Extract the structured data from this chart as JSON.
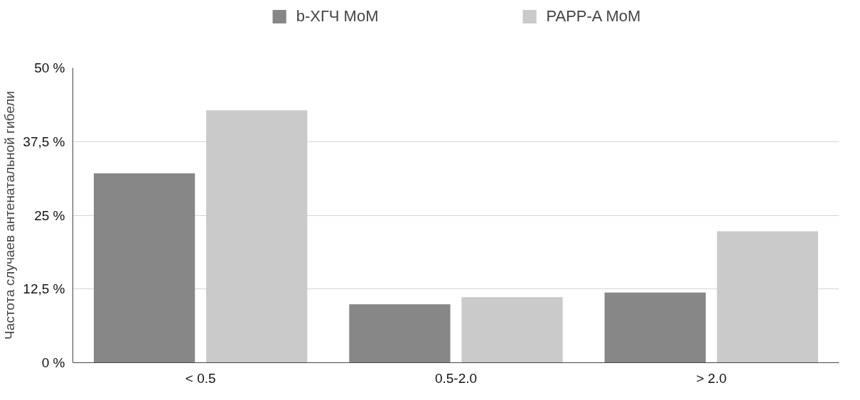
{
  "chart_data": {
    "type": "bar",
    "ylabel": "Частота случаев антенатальной гибели",
    "categories": [
      "< 0.5",
      "0.5-2.0",
      "> 2.0"
    ],
    "series": [
      {
        "name": "b-ХГЧ MoM",
        "color": "#878787",
        "values": [
          32.1,
          9.9,
          11.9
        ]
      },
      {
        "name": "PAPP-A MoM",
        "color": "#cacaca",
        "values": [
          42.8,
          11.1,
          22.3
        ]
      }
    ],
    "ylim": [
      0,
      50
    ],
    "yticks": [
      {
        "value": 0,
        "label": "0 %"
      },
      {
        "value": 12.5,
        "label": "12,5 %"
      },
      {
        "value": 25,
        "label": "25 %"
      },
      {
        "value": 37.5,
        "label": "37,5 %"
      },
      {
        "value": 50,
        "label": "50 %"
      }
    ],
    "grid": "y",
    "legend": "top"
  }
}
